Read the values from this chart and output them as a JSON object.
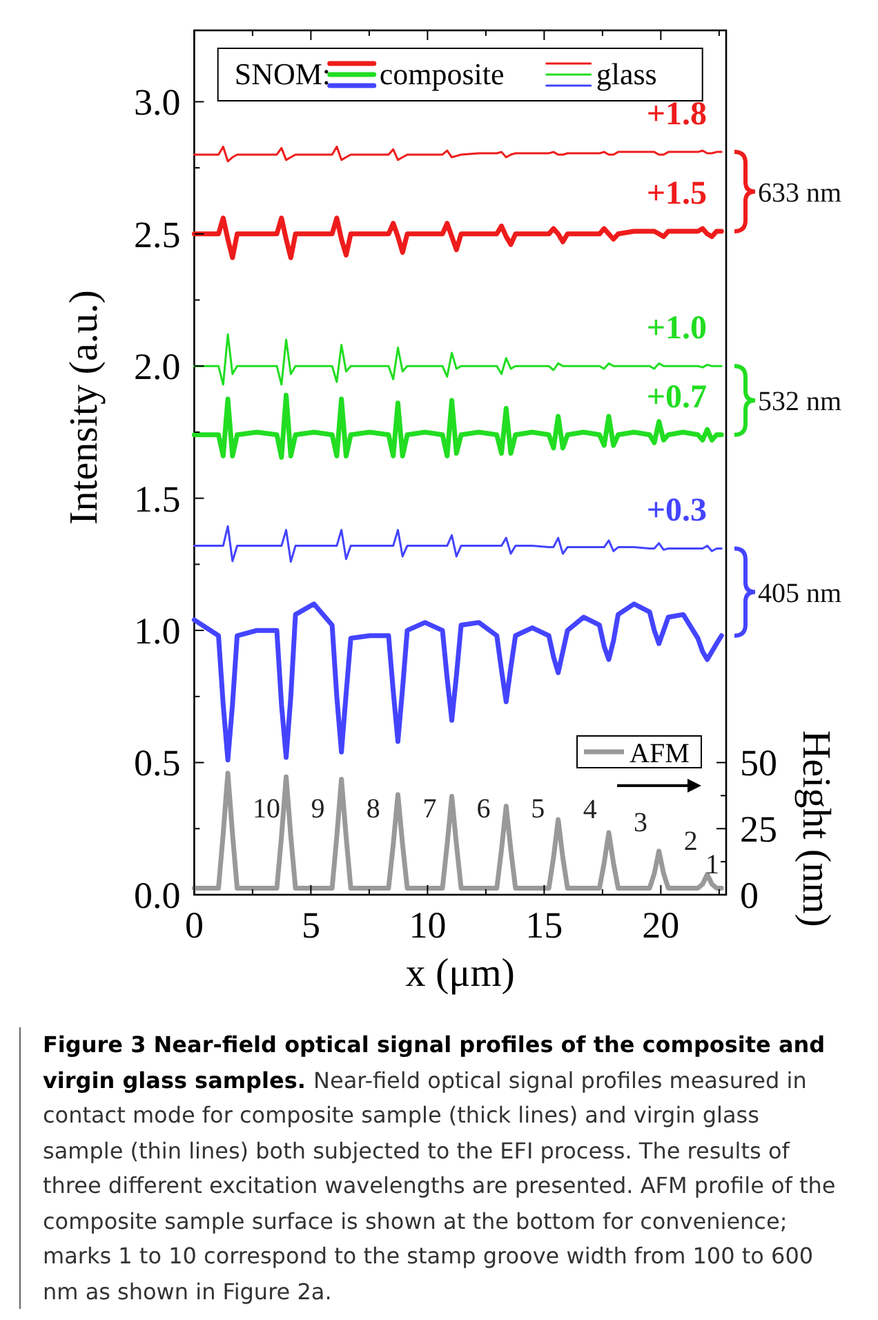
{
  "chart_data": {
    "type": "line",
    "xlabel": "x (μm)",
    "ylabel": "Intensity (a.u.)",
    "y2label": "Height (nm)",
    "legend_title": "SNOM:",
    "legend": "top",
    "xlim": [
      0,
      22.8
    ],
    "ylim": [
      0,
      3.27
    ],
    "y2lim": [
      0,
      327
    ],
    "xticks": [
      0,
      {
        "value": 2.5,
        "label": null
      },
      5,
      {
        "value": 7.5,
        "label": null
      },
      10,
      {
        "value": 12.5,
        "label": null
      },
      15,
      {
        "value": 17.5,
        "label": null
      },
      20,
      {
        "value": 22.5,
        "label": null
      }
    ],
    "yticks": [
      {
        "value": 0,
        "label": "0.0"
      },
      {
        "value": 0.25,
        "label": null
      },
      0.5,
      {
        "value": 0.75,
        "label": null
      },
      {
        "value": 1,
        "label": "1.0"
      },
      {
        "value": 1.25,
        "label": null
      },
      1.5,
      {
        "value": 1.75,
        "label": null
      },
      {
        "value": 2,
        "label": "2.0"
      },
      {
        "value": 2.25,
        "label": null
      },
      2.5,
      {
        "value": 2.75,
        "label": null
      },
      {
        "value": 3,
        "label": "3.0"
      }
    ],
    "y2ticks": [
      0,
      {
        "value": 12.5,
        "label": null
      },
      25,
      {
        "value": 37.5,
        "label": null
      },
      50
    ],
    "x": [
      0,
      1.04,
      1.24,
      1.44,
      1.64,
      1.84,
      2.69,
      3.54,
      3.74,
      3.94,
      4.14,
      4.34,
      5.13,
      5.91,
      6.11,
      6.31,
      6.51,
      6.71,
      7.52,
      8.33,
      8.53,
      8.73,
      8.93,
      9.13,
      9.89,
      10.64,
      10.84,
      11.04,
      11.24,
      11.44,
      12.2,
      12.97,
      13.17,
      13.37,
      13.57,
      13.77,
      14.49,
      15.2,
      15.4,
      15.6,
      15.8,
      16.0,
      16.69,
      17.37,
      17.57,
      17.77,
      17.97,
      18.17,
      18.85,
      19.52,
      19.72,
      19.92,
      20.12,
      20.32,
      20.96,
      21.59,
      21.79,
      21.99,
      22.19,
      22.39,
      22.6
    ],
    "series": [
      {
        "name": "composite",
        "color": "#ee1c1c",
        "values": [
          2.5,
          2.5,
          2.56,
          2.48,
          2.41,
          2.5,
          2.5,
          2.5,
          2.56,
          2.48,
          2.41,
          2.5,
          2.5,
          2.5,
          2.56,
          2.48,
          2.42,
          2.5,
          2.5,
          2.5,
          2.54,
          2.49,
          2.43,
          2.5,
          2.5,
          2.5,
          2.54,
          2.49,
          2.44,
          2.5,
          2.5,
          2.5,
          2.53,
          2.49,
          2.46,
          2.5,
          2.5,
          2.5,
          2.52,
          2.5,
          2.47,
          2.5,
          2.5,
          2.5,
          2.52,
          2.5,
          2.48,
          2.5,
          2.51,
          2.51,
          2.51,
          2.5,
          2.49,
          2.51,
          2.51,
          2.51,
          2.52,
          2.5,
          2.49,
          2.51,
          2.51
        ]
      },
      {
        "name": "glass",
        "color": "#ee1c1c",
        "values": [
          2.8,
          2.8,
          2.83,
          2.775,
          2.79,
          2.8,
          2.8,
          2.8,
          2.825,
          2.78,
          2.79,
          2.8,
          2.8,
          2.8,
          2.83,
          2.78,
          2.79,
          2.8,
          2.8,
          2.8,
          2.82,
          2.78,
          2.79,
          2.8,
          2.8,
          2.8,
          2.815,
          2.79,
          2.795,
          2.8,
          2.805,
          2.805,
          2.81,
          2.79,
          2.8,
          2.805,
          2.805,
          2.805,
          2.81,
          2.8,
          2.8,
          2.805,
          2.805,
          2.805,
          2.81,
          2.8,
          2.8,
          2.81,
          2.81,
          2.81,
          2.81,
          2.8,
          2.8,
          2.81,
          2.81,
          2.81,
          2.815,
          2.805,
          2.805,
          2.81,
          2.81
        ]
      },
      {
        "color": "#22dd22",
        "values": [
          1.74,
          1.74,
          1.66,
          1.875,
          1.66,
          1.74,
          1.75,
          1.74,
          1.655,
          1.89,
          1.66,
          1.74,
          1.75,
          1.74,
          1.66,
          1.875,
          1.66,
          1.74,
          1.75,
          1.74,
          1.66,
          1.86,
          1.66,
          1.74,
          1.75,
          1.74,
          1.66,
          1.87,
          1.67,
          1.74,
          1.75,
          1.74,
          1.67,
          1.84,
          1.67,
          1.74,
          1.75,
          1.74,
          1.69,
          1.81,
          1.69,
          1.74,
          1.75,
          1.74,
          1.7,
          1.81,
          1.7,
          1.74,
          1.75,
          1.74,
          1.71,
          1.79,
          1.72,
          1.74,
          1.75,
          1.74,
          1.72,
          1.76,
          1.72,
          1.74,
          1.74
        ]
      },
      {
        "color": "#22dd22",
        "values": [
          2,
          2,
          1.93,
          2.12,
          1.97,
          2,
          2,
          2,
          1.93,
          2.1,
          1.97,
          2,
          2,
          2,
          1.94,
          2.08,
          1.98,
          2,
          2,
          2,
          1.95,
          2.07,
          1.98,
          2,
          2,
          2,
          1.96,
          2.05,
          1.99,
          2,
          2,
          2,
          1.97,
          2.03,
          1.99,
          2,
          2,
          2,
          1.985,
          2.01,
          2,
          2,
          2,
          2,
          1.99,
          2.01,
          2,
          2,
          2,
          2,
          1.99,
          2.01,
          2,
          2,
          2,
          2,
          1.995,
          2.005,
          2,
          2,
          2
        ]
      },
      {
        "color": "#4444ff",
        "values": [
          1.04,
          0.98,
          0.72,
          0.51,
          0.72,
          0.98,
          1.0,
          1.0,
          0.72,
          0.52,
          0.75,
          1.06,
          1.1,
          1.02,
          0.75,
          0.54,
          0.76,
          0.97,
          0.98,
          0.98,
          0.77,
          0.58,
          0.78,
          1.0,
          1.03,
          1.0,
          0.82,
          0.66,
          0.83,
          1.02,
          1.03,
          0.98,
          0.85,
          0.73,
          0.86,
          0.98,
          1.01,
          0.98,
          0.9,
          0.84,
          0.92,
          1.0,
          1.05,
          1.02,
          0.94,
          0.89,
          0.96,
          1.06,
          1.1,
          1.07,
          1.0,
          0.95,
          1.0,
          1.05,
          1.06,
          0.97,
          0.92,
          0.89,
          0.92,
          0.95,
          0.98
        ]
      },
      {
        "color": "#4444ff",
        "values": [
          1.32,
          1.32,
          1.32,
          1.394,
          1.262,
          1.32,
          1.32,
          1.32,
          1.32,
          1.38,
          1.26,
          1.32,
          1.32,
          1.32,
          1.32,
          1.38,
          1.27,
          1.32,
          1.32,
          1.32,
          1.32,
          1.38,
          1.28,
          1.32,
          1.32,
          1.32,
          1.32,
          1.36,
          1.28,
          1.32,
          1.32,
          1.32,
          1.32,
          1.35,
          1.29,
          1.32,
          1.32,
          1.315,
          1.315,
          1.35,
          1.29,
          1.315,
          1.315,
          1.315,
          1.315,
          1.34,
          1.3,
          1.315,
          1.315,
          1.31,
          1.31,
          1.33,
          1.305,
          1.31,
          1.31,
          1.31,
          1.31,
          1.32,
          1.3,
          1.31,
          1.31
        ]
      },
      {
        "name": "AFM",
        "color": "#999999",
        "axis": "y2",
        "values": [
          2.5,
          2.5,
          23,
          46,
          23,
          2.5,
          2.5,
          2.5,
          22,
          44.6,
          22,
          2.5,
          2.5,
          2.5,
          22,
          43.7,
          22,
          2.5,
          2.5,
          2.5,
          19,
          37.9,
          19,
          2.5,
          2.5,
          2.5,
          19,
          37.2,
          19,
          2.5,
          2.5,
          2.5,
          17,
          33.5,
          17,
          2.5,
          2.5,
          2.5,
          14,
          28.4,
          14,
          2.5,
          2.5,
          2.5,
          12,
          23.5,
          12,
          2.5,
          2.5,
          2.5,
          8,
          16.5,
          8,
          2.5,
          2.5,
          2.5,
          4,
          7.7,
          4,
          2.5,
          2.5
        ]
      }
    ],
    "annotations": [
      "+1.8",
      "+1.5",
      "+1.0",
      "+0.7",
      "+0.3",
      "633 nm",
      "532 nm",
      "405 nm",
      "10",
      "9",
      "8",
      "7",
      "6",
      "5",
      "4",
      "3",
      "2",
      "1",
      "Figure 3 Near-field optical signal profiles of the composite and virgin glass samples.",
      "Near-field optical signal profiles measured in contact mode for composite sample (thick lines) and virgin glass sample (thin lines) both subjected to the EFI process. The results of three different excitation wavelengths are presented. AFM profile of the composite sample surface is shown at the bottom for convenience; marks 1 to 10 correspond to the stamp groove width from 100 to 600 nm as shown in Figure 2a."
    ]
  }
}
